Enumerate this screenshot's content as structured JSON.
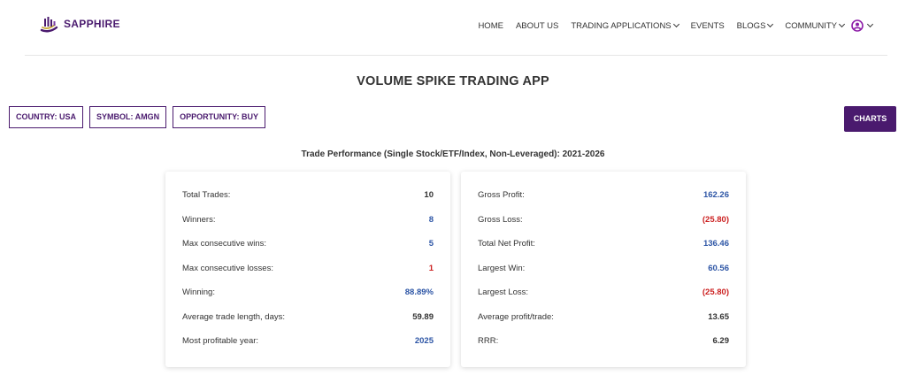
{
  "brand": {
    "name": "SAPPHIRE"
  },
  "nav": {
    "items": [
      {
        "label": "HOME",
        "dropdown": false
      },
      {
        "label": "ABOUT US",
        "dropdown": false
      },
      {
        "label": "TRADING APPLICATIONS",
        "dropdown": true
      },
      {
        "label": "EVENTS",
        "dropdown": false
      },
      {
        "label": "BLOGS",
        "dropdown": true
      },
      {
        "label": "COMMUNITY",
        "dropdown": true
      }
    ],
    "profile_icon": "user-circle-icon"
  },
  "page": {
    "title": "VOLUME SPIKE TRADING APP",
    "subtitle": "Trade Performance (Single Stock/ETF/Index, Non-Leveraged): 2021-2026"
  },
  "filters": {
    "country": "COUNTRY: USA",
    "symbol": "SYMBOL: AMGN",
    "opportunity": "OPPORTUNITY: BUY"
  },
  "charts_button": "CHARTS",
  "colors": {
    "brand": "#4a1a6e",
    "positive": "#2e56a6",
    "negative": "#cc2222",
    "neutral": "#333333"
  },
  "stats_left": [
    {
      "label": "Total Trades:",
      "value": "10",
      "tone": "neutral"
    },
    {
      "label": "Winners:",
      "value": "8",
      "tone": "positive"
    },
    {
      "label": "Max consecutive wins:",
      "value": "5",
      "tone": "positive"
    },
    {
      "label": "Max consecutive losses:",
      "value": "1",
      "tone": "negative"
    },
    {
      "label": "Winning:",
      "value": "88.89%",
      "tone": "positive"
    },
    {
      "label": "Average trade length, days:",
      "value": "59.89",
      "tone": "neutral"
    },
    {
      "label": "Most profitable year:",
      "value": "2025",
      "tone": "positive"
    }
  ],
  "stats_right": [
    {
      "label": "Gross Profit:",
      "value": "162.26",
      "tone": "positive"
    },
    {
      "label": "Gross Loss:",
      "value": "(25.80)",
      "tone": "negative"
    },
    {
      "label": "Total Net Profit:",
      "value": "136.46",
      "tone": "positive"
    },
    {
      "label": "Largest Win:",
      "value": "60.56",
      "tone": "positive"
    },
    {
      "label": "Largest Loss:",
      "value": "(25.80)",
      "tone": "negative"
    },
    {
      "label": "Average profit/trade:",
      "value": "13.65",
      "tone": "neutral"
    },
    {
      "label": "RRR:",
      "value": "6.29",
      "tone": "neutral"
    }
  ]
}
